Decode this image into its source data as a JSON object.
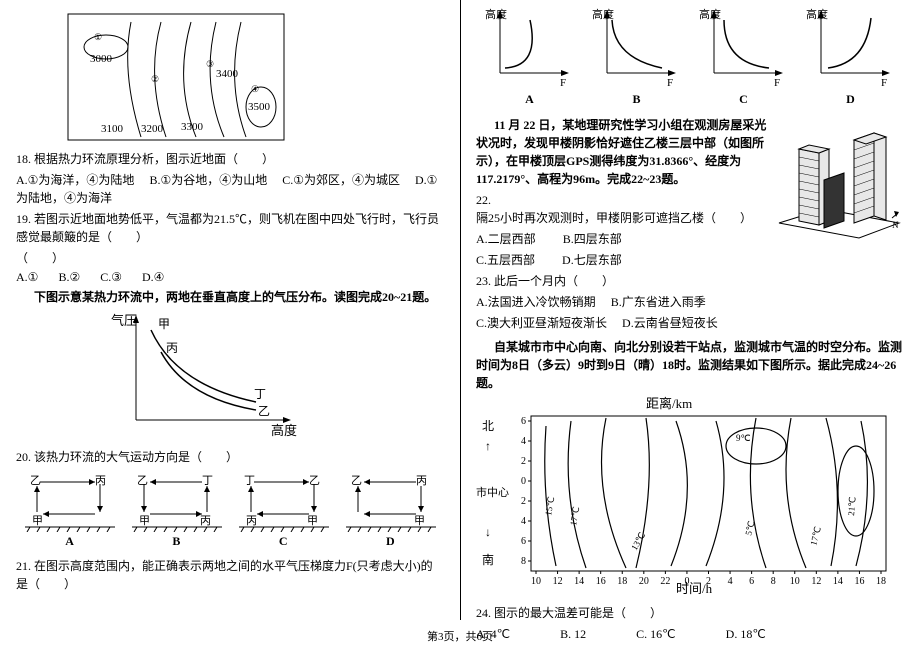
{
  "left": {
    "contour": {
      "values": [
        "3000",
        "3100",
        "3200",
        "3300",
        "3400",
        "3500"
      ],
      "markers": [
        "①",
        "②",
        "③",
        "④"
      ]
    },
    "q18": {
      "num": "18.",
      "stem": "根据热力环流原理分析，图示近地面（　　）",
      "opts": [
        "A.①为海洋，④为陆地",
        "B.①为谷地，④为山地",
        "C.①为郊区，④为城区",
        "D.①为陆地，④为海洋"
      ]
    },
    "q19": {
      "num": "19.",
      "stem": "若图示近地面地势低平，气温都为21.5℃，则飞机在图中四处飞行时，飞行员感觉最颠簸的是（　　）",
      "opts": [
        "A.①",
        "B.②",
        "C.③",
        "D.④"
      ]
    },
    "passage1": "下图示意某热力环流中，两地在垂直高度上的气压分布。读图完成20~21题。",
    "pressureFig": {
      "yLabel": "气压",
      "xLabel": "高度",
      "pts": [
        "甲",
        "丙",
        "丁",
        "乙"
      ]
    },
    "q20": {
      "num": "20.",
      "stem": "该热力环流的大气运动方向是（　　）",
      "diaLabels": [
        "乙",
        "丙",
        "丁",
        "甲"
      ],
      "opts": [
        "A",
        "B",
        "C",
        "D"
      ]
    },
    "q21": {
      "num": "21.",
      "stem": "在图示高度范围内，能正确表示两地之间的水平气压梯度力F(只考虑大小)的是（　　）"
    }
  },
  "right": {
    "hgFig": {
      "yLabel": "高度",
      "xLabel": "F",
      "opts": [
        "A",
        "B",
        "C",
        "D"
      ]
    },
    "passage2a": "11 月 22 日，某地理研究性学习小组在观测房屋采光状况时，发现甲楼阴影恰好遮住乙楼三层中部（如图所示），在甲楼顶层GPS测得纬度为31.8366°、经度为117.2179°、高程为96m。完成22~23题。",
    "q22": {
      "num": "22.",
      "stem": "隔25小时再次观测时，甲楼阴影可遮挡乙楼（　　）",
      "opts": [
        "A.二层西部",
        "B.四层东部",
        "C.五层西部",
        "D.七层东部"
      ]
    },
    "q23": {
      "num": "23.",
      "stem": "此后一个月内（　　）",
      "opts": [
        "A.法国进入冷饮畅销期",
        "B.广东省进入雨季",
        "C.澳大利亚昼渐短夜渐长",
        "D.云南省昼短夜长"
      ]
    },
    "passage3": "自某城市市中心向南、向北分别设若干站点，监测城市气温的时空分布。监测时间为8日（多云）9时到9日（晴）18时。监测结果如下图所示。据此完成24~26题。",
    "tempFig": {
      "yLabel": "距离/km",
      "xLabel": "时间/h",
      "yTicks": [
        "6",
        "4",
        "2",
        "0",
        "2",
        "4",
        "6",
        "8"
      ],
      "xTicks": [
        "10",
        "12",
        "14",
        "16",
        "18",
        "20",
        "22",
        "0",
        "2",
        "4",
        "6",
        "8",
        "10",
        "12",
        "14",
        "16",
        "18"
      ],
      "yMarks": [
        "北",
        "↑",
        "市中心",
        "↓",
        "南"
      ],
      "isoLabels": [
        "9℃",
        "15℃",
        "17℃",
        "13℃",
        "5℃",
        "17℃",
        "21℃"
      ]
    },
    "q24": {
      "num": "24.",
      "stem": "图示的最大温差可能是（　　）",
      "opts": [
        "A. 4℃",
        "B. 12",
        "C. 16℃",
        "D. 18℃"
      ]
    }
  },
  "footer": "第3页，共6页"
}
